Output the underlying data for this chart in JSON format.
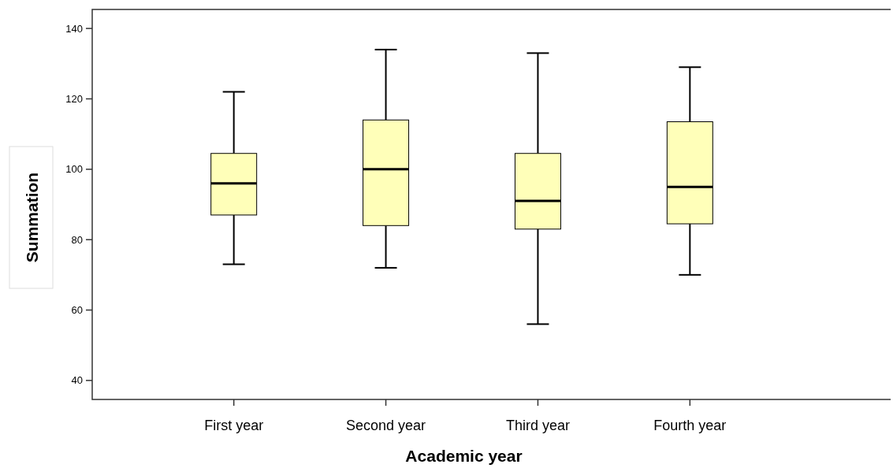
{
  "chart_data": {
    "type": "box",
    "xlabel": "Academic year",
    "ylabel": "Summation",
    "categories": [
      "First year",
      "Second year",
      "Third year",
      "Fourth year"
    ],
    "color": "#ffffb9",
    "boxes": [
      {
        "low": 73,
        "q1": 87,
        "median": 96,
        "q3": 104.5,
        "high": 122
      },
      {
        "low": 72,
        "q1": 84,
        "median": 100,
        "q3": 114,
        "high": 134
      },
      {
        "low": 56,
        "q1": 83,
        "median": 91,
        "q3": 104.5,
        "high": 133
      },
      {
        "low": 70,
        "q1": 84.5,
        "median": 95,
        "q3": 113.5,
        "high": 129
      }
    ],
    "ylim": [
      34.6,
      145.4
    ],
    "yticks": [
      40,
      60,
      80,
      100,
      120,
      140
    ],
    "grid": false
  }
}
